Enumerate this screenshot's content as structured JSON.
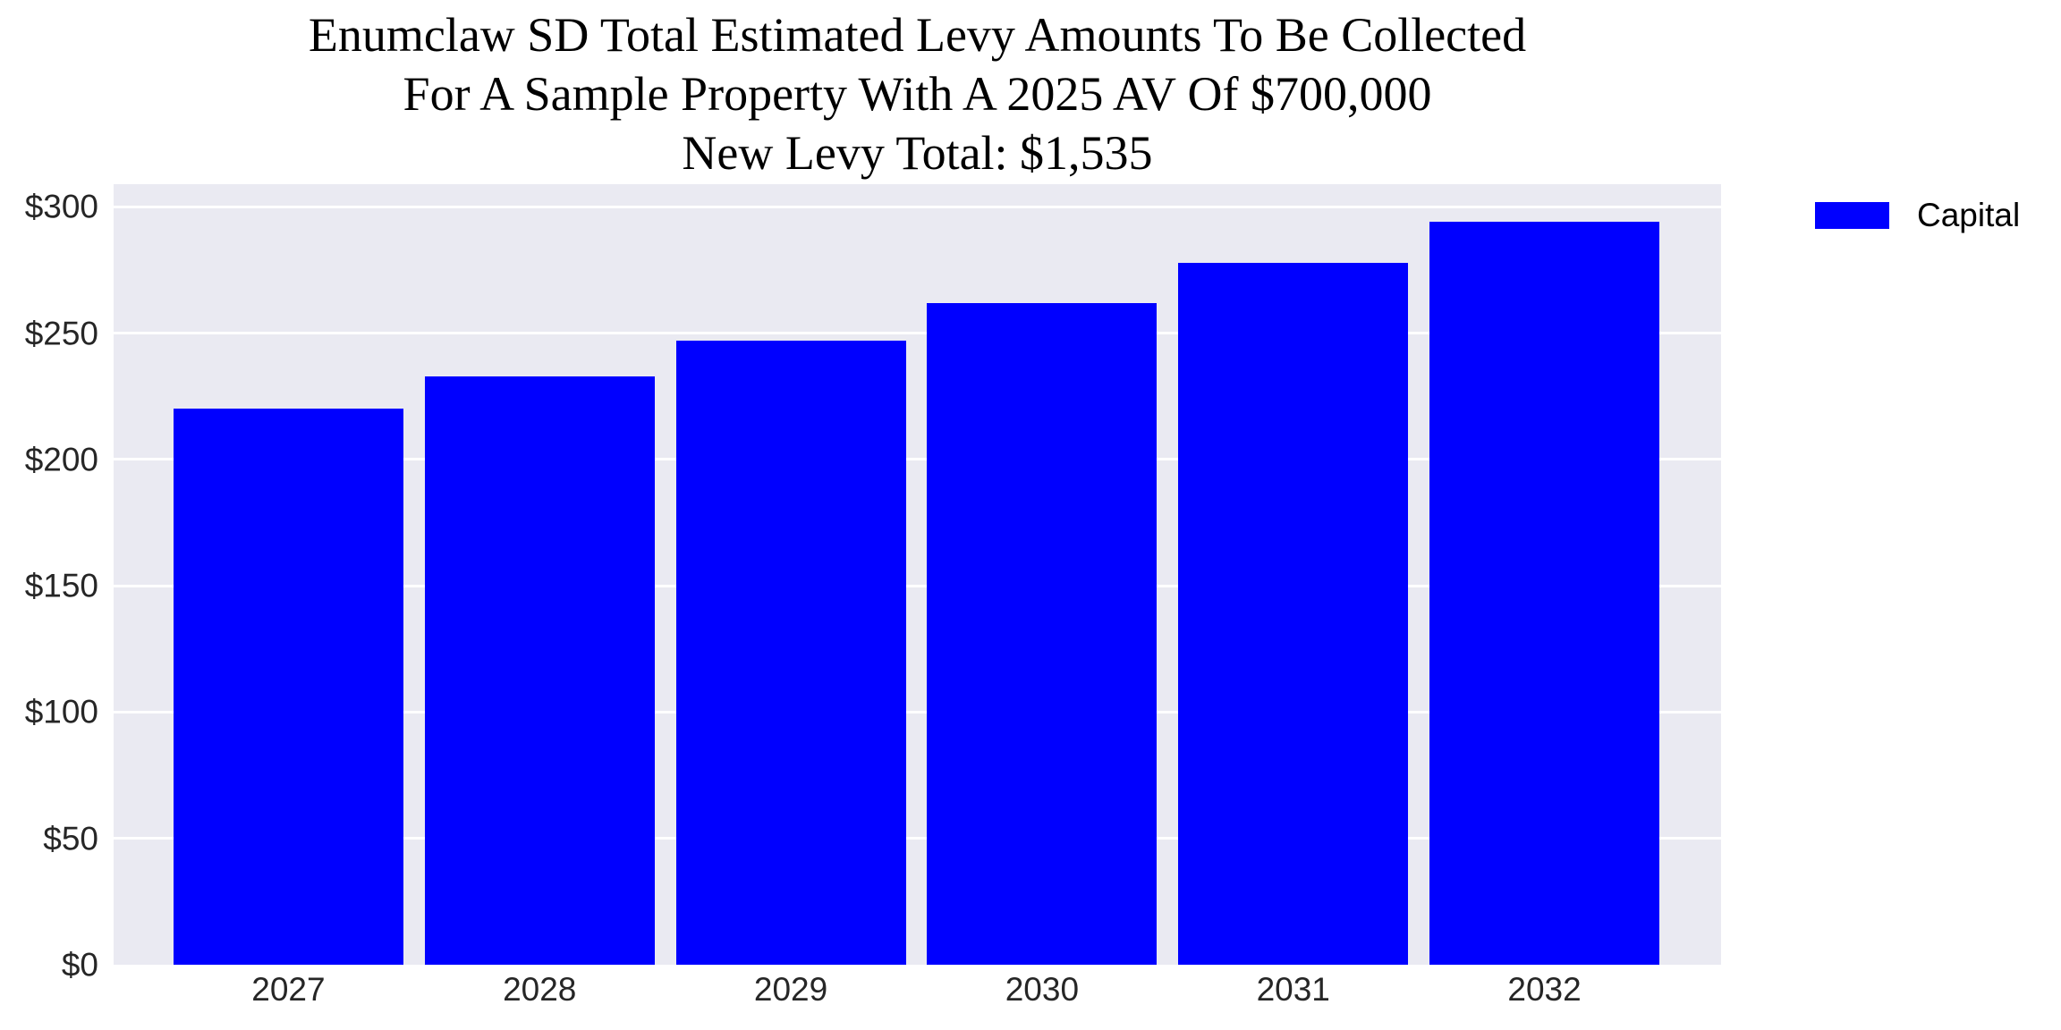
{
  "chart_data": {
    "type": "bar",
    "title_lines": [
      "Enumclaw SD Total Estimated Levy Amounts To Be Collected",
      "For A Sample Property With A 2025 AV Of $700,000",
      "New Levy Total: $1,535"
    ],
    "categories": [
      "2027",
      "2028",
      "2029",
      "2030",
      "2031",
      "2032"
    ],
    "series": [
      {
        "name": "Capital",
        "color": "#0000ff",
        "values": [
          220,
          233,
          247,
          262,
          278,
          294
        ]
      }
    ],
    "xlabel": "",
    "ylabel": "",
    "ylim": [
      0,
      309
    ],
    "ytick_values": [
      0,
      50,
      100,
      150,
      200,
      250,
      300
    ],
    "ytick_labels": [
      "$0",
      "$50",
      "$100",
      "$150",
      "$200",
      "$250",
      "$300"
    ],
    "grid": true,
    "legend": {
      "position": "top-right-outside",
      "entries": [
        {
          "label": "Capital",
          "color": "#0000ff"
        }
      ]
    },
    "colors": {
      "plot_background": "#eaeaf2",
      "gridline": "#ffffff",
      "bar": "#0000ff",
      "tick_text": "#262626",
      "title_text": "#000000",
      "figure_background": "#ffffff"
    }
  }
}
